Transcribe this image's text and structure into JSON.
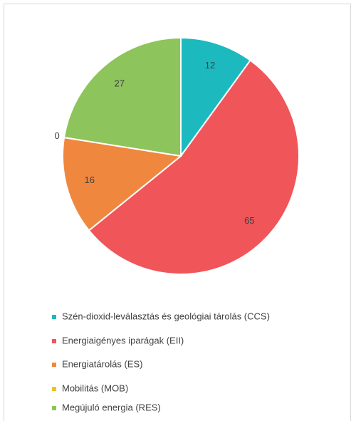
{
  "chart_data": {
    "type": "pie",
    "categories": [
      "Szén-dioxid-leválasztás és geológiai tárolás (CCS)",
      "Energiaigényes iparágak (EII)",
      "Energiatárolás (ES)",
      "Mobilitás (MOB)",
      "Megújuló energia (RES)"
    ],
    "values": [
      12,
      65,
      16,
      0,
      27
    ],
    "colors": [
      "#1cb9bf",
      "#f0555a",
      "#f0873f",
      "#f3c11b",
      "#8dc45b"
    ],
    "legend": "bottom"
  }
}
